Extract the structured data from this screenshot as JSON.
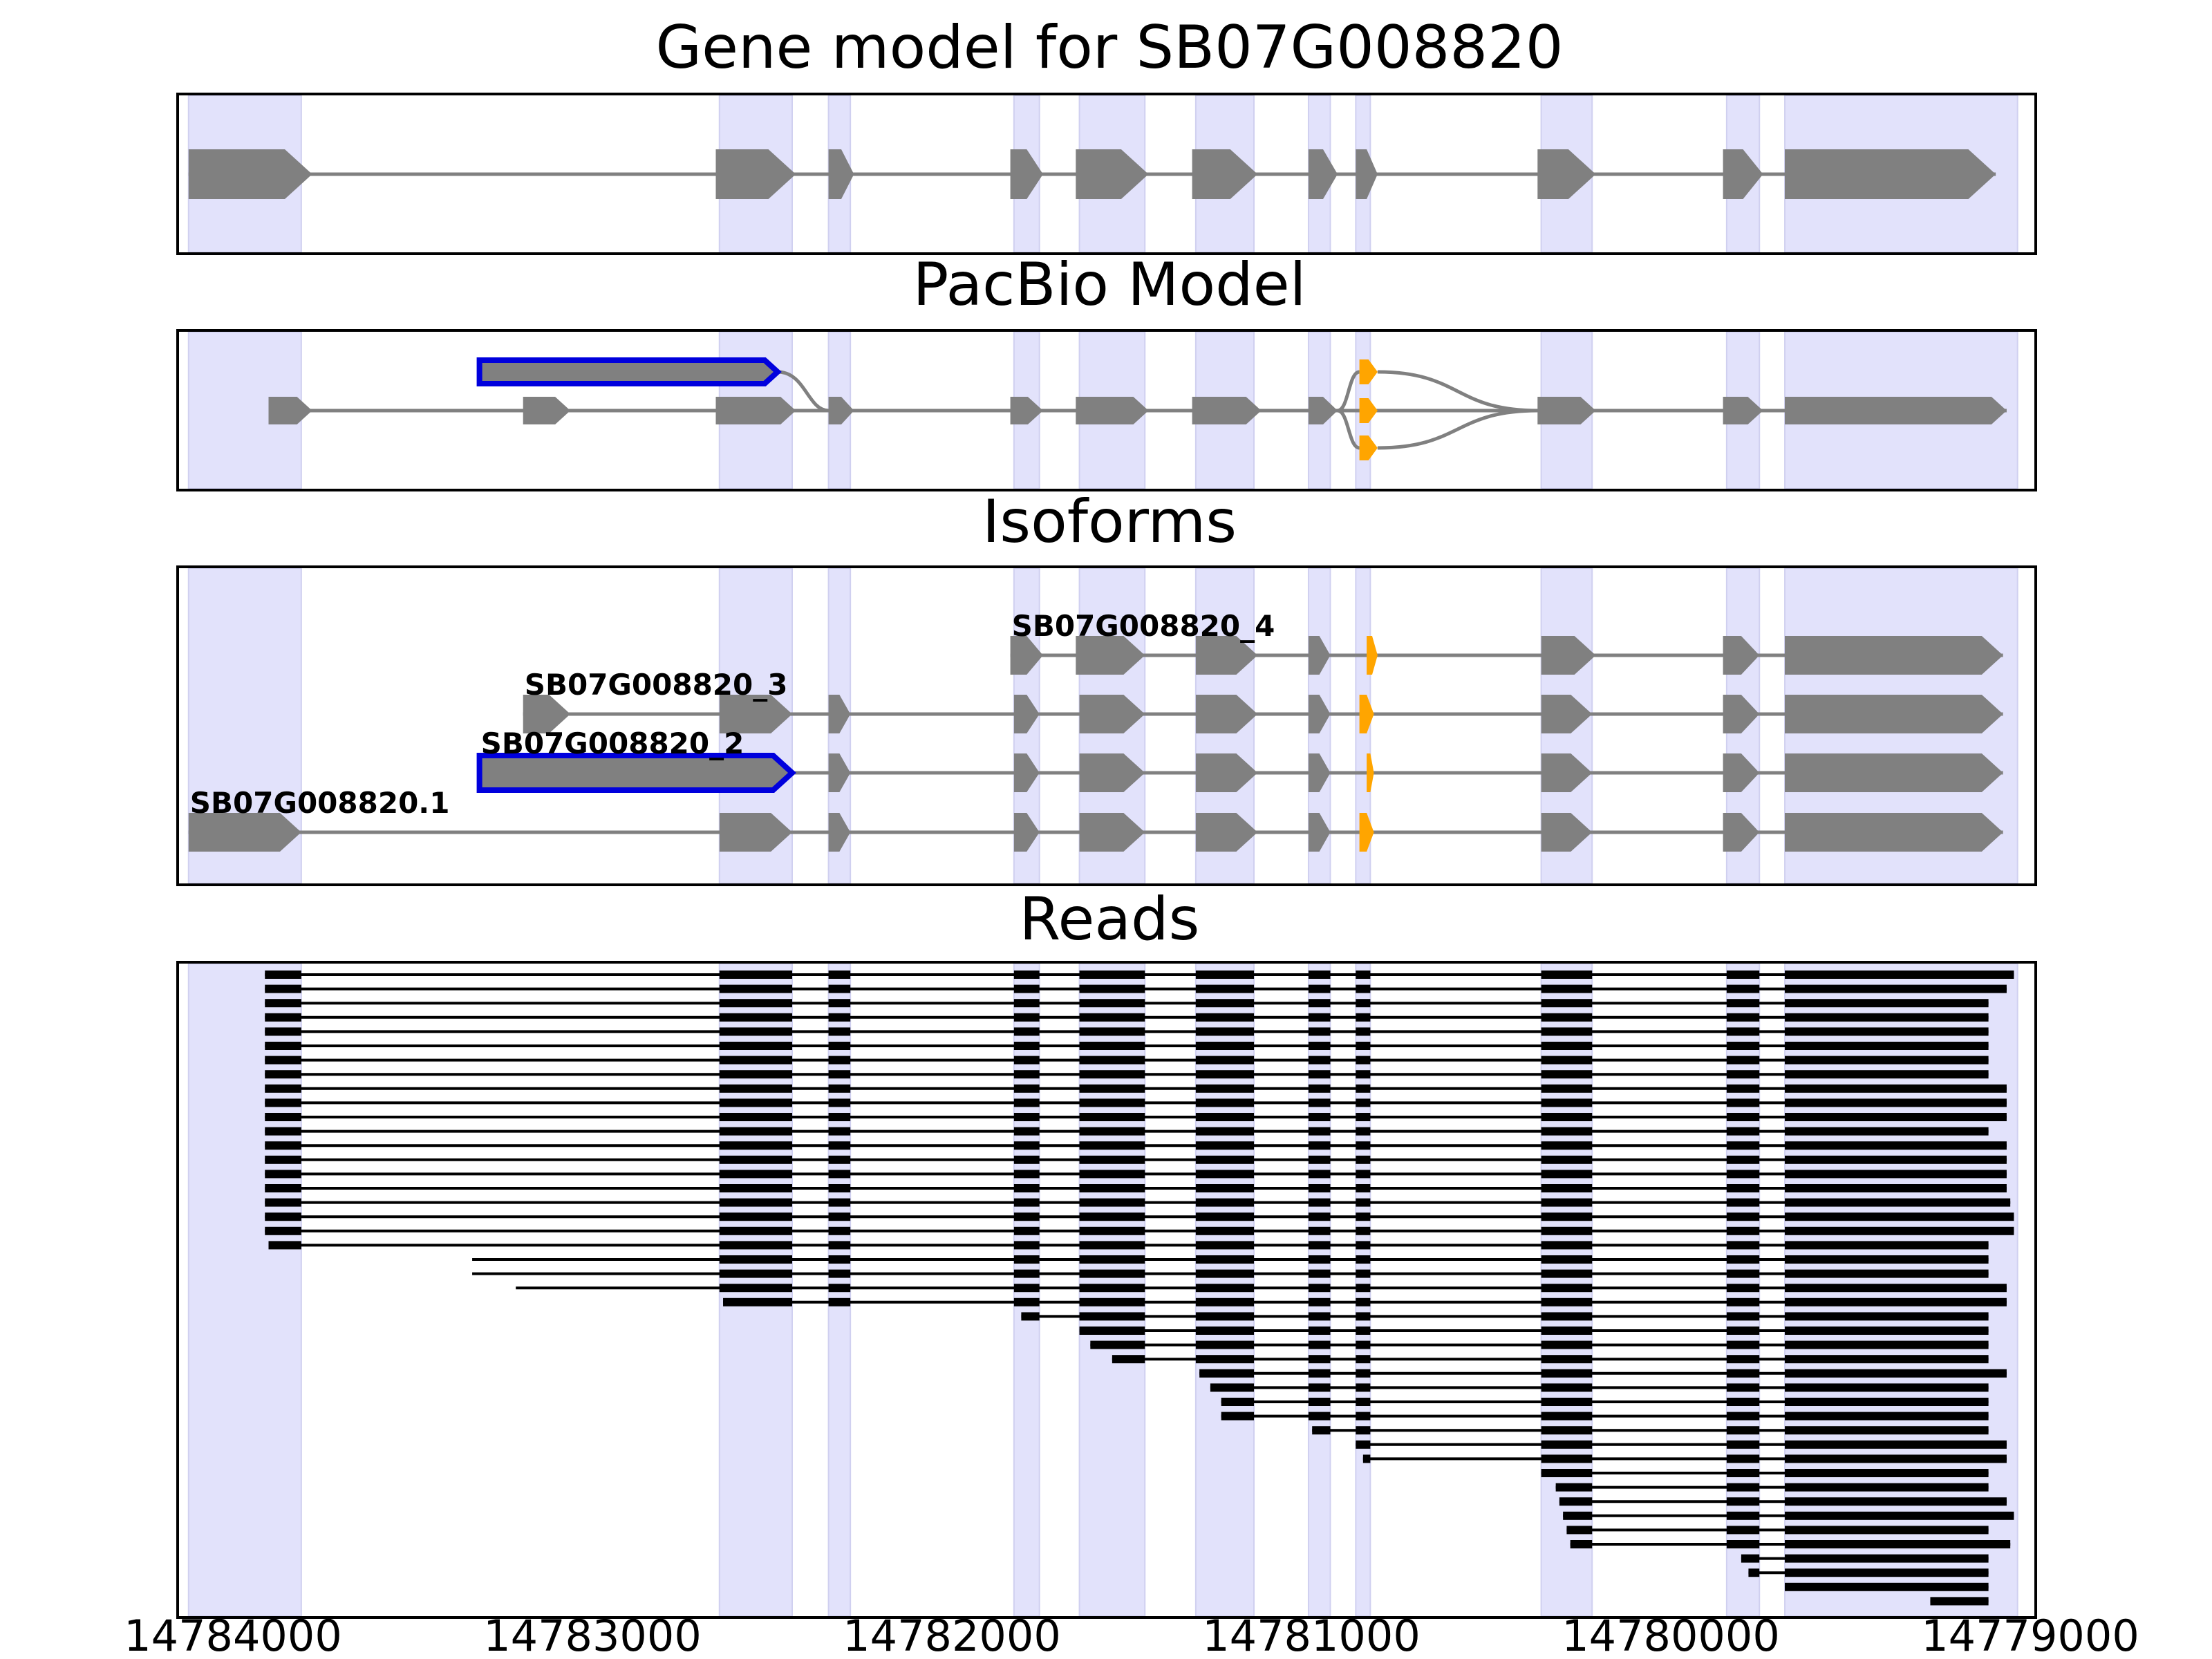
{
  "chart_data": {
    "type": "gene_model_tracks",
    "x_axis": {
      "reversed": true,
      "xlim": [
        14784080,
        14778970
      ],
      "ticks": [
        14784000,
        14783000,
        14782000,
        14781000,
        14780000,
        14779000
      ],
      "tick_labels": [
        "14784000",
        "14783000",
        "14782000",
        "14781000",
        "14780000",
        "14779000"
      ]
    },
    "colors": {
      "exon": "#808080",
      "intron": "#808080",
      "shade": "#e2e2fb",
      "highlight": "#0000dd",
      "alt_exon": "#ffa500",
      "read": "#000000"
    },
    "shaded_regions": [
      [
        14784050,
        14783740
      ],
      [
        14782590,
        14782390
      ],
      [
        14782290,
        14782230
      ],
      [
        14781780,
        14781710
      ],
      [
        14781600,
        14781420
      ],
      [
        14781280,
        14781120
      ],
      [
        14780970,
        14780910
      ],
      [
        14780840,
        14780800
      ],
      [
        14780330,
        14780190
      ],
      [
        14779820,
        14779730
      ],
      [
        14779660,
        14779020
      ]
    ],
    "gene_model": {
      "title": "Gene model for SB07G008820",
      "exons": [
        [
          14784050,
          14783710
        ],
        [
          14782600,
          14782380
        ],
        [
          14782290,
          14782220
        ],
        [
          14781790,
          14781700
        ],
        [
          14781610,
          14781410
        ],
        [
          14781290,
          14781110
        ],
        [
          14780970,
          14780890
        ],
        [
          14780840,
          14780780
        ],
        [
          14780340,
          14780180
        ],
        [
          14779830,
          14779720
        ],
        [
          14779660,
          14779080
        ]
      ]
    },
    "pacbio_model": {
      "title": "PacBio Model",
      "highlighted_exon": [
        14783250,
        14782430
      ],
      "main_exons": [
        [
          14783830,
          14783710
        ],
        [
          14783130,
          14783000
        ],
        [
          14782600,
          14782380
        ],
        [
          14782290,
          14782220
        ],
        [
          14781790,
          14781700
        ],
        [
          14781610,
          14781410
        ],
        [
          14781290,
          14781100
        ],
        [
          14780970,
          14780890
        ],
        [
          14780340,
          14780180
        ],
        [
          14779830,
          14779720
        ],
        [
          14779660,
          14779050
        ]
      ],
      "alt_exons": [
        [
          14780830,
          14780780
        ],
        [
          14780830,
          14780780
        ],
        [
          14780830,
          14780780
        ]
      ]
    },
    "isoforms": {
      "title": "Isoforms",
      "items": [
        {
          "name": "SB07G008820_4",
          "start": 14781790,
          "exons": [
            [
              14781790,
              14781700
            ],
            [
              14781610,
              14781420
            ],
            [
              14781280,
              14781110
            ],
            [
              14780970,
              14780910
            ],
            [
              14780810,
              14780780
            ],
            [
              14780330,
              14780180
            ],
            [
              14779830,
              14779730
            ],
            [
              14779660,
              14779060
            ]
          ],
          "alt_exons": [
            [
              14780810,
              14780780
            ]
          ]
        },
        {
          "name": "SB07G008820_3",
          "start": 14783130,
          "exons": [
            [
              14783130,
              14783000
            ],
            [
              14782590,
              14782390
            ],
            [
              14782290,
              14782230
            ],
            [
              14781780,
              14781710
            ],
            [
              14781600,
              14781420
            ],
            [
              14781280,
              14781110
            ],
            [
              14780970,
              14780910
            ],
            [
              14780830,
              14780790
            ],
            [
              14780330,
              14780190
            ],
            [
              14779830,
              14779730
            ],
            [
              14779660,
              14779060
            ]
          ],
          "alt_exons": [
            [
              14780830,
              14780790
            ]
          ]
        },
        {
          "name": "SB07G008820_2",
          "start": 14783250,
          "highlight": [
            14783250,
            14782390
          ],
          "exons": [
            [
              14782290,
              14782230
            ],
            [
              14781780,
              14781710
            ],
            [
              14781600,
              14781420
            ],
            [
              14781280,
              14781110
            ],
            [
              14780970,
              14780910
            ],
            [
              14780810,
              14780790
            ],
            [
              14780330,
              14780190
            ],
            [
              14779830,
              14779730
            ],
            [
              14779660,
              14779060
            ]
          ],
          "alt_exons": [
            [
              14780810,
              14780790
            ]
          ]
        },
        {
          "name": "SB07G008820.1",
          "start": 14784050,
          "exons": [
            [
              14784050,
              14783740
            ],
            [
              14782590,
              14782390
            ],
            [
              14782290,
              14782230
            ],
            [
              14781780,
              14781710
            ],
            [
              14781600,
              14781420
            ],
            [
              14781280,
              14781110
            ],
            [
              14780970,
              14780910
            ],
            [
              14780830,
              14780790
            ],
            [
              14780330,
              14780190
            ],
            [
              14779830,
              14779730
            ],
            [
              14779660,
              14779060
            ]
          ],
          "alt_exons": [
            [
              14780830,
              14780790
            ]
          ]
        }
      ]
    },
    "reads": {
      "title": "Reads",
      "rows": [
        [
          14783840,
          14779030
        ],
        [
          14783840,
          14779050
        ],
        [
          14783840,
          14779100
        ],
        [
          14783840,
          14779100
        ],
        [
          14783840,
          14779100
        ],
        [
          14783840,
          14779100
        ],
        [
          14783840,
          14779100
        ],
        [
          14783840,
          14779100
        ],
        [
          14783840,
          14779050
        ],
        [
          14783840,
          14779050
        ],
        [
          14783840,
          14779050
        ],
        [
          14783840,
          14779100
        ],
        [
          14783840,
          14779050
        ],
        [
          14783840,
          14779050
        ],
        [
          14783840,
          14779050
        ],
        [
          14783840,
          14779050
        ],
        [
          14783840,
          14779040
        ],
        [
          14783840,
          14779030
        ],
        [
          14783840,
          14779030
        ],
        [
          14783830,
          14779100
        ],
        [
          14783270,
          14779100
        ],
        [
          14783270,
          14779100
        ],
        [
          14783150,
          14779050
        ],
        [
          14782580,
          14779050
        ],
        [
          14781760,
          14779100
        ],
        [
          14781600,
          14779100
        ],
        [
          14781570,
          14779100
        ],
        [
          14781510,
          14779100
        ],
        [
          14781270,
          14779050
        ],
        [
          14781240,
          14779100
        ],
        [
          14781210,
          14779100
        ],
        [
          14781210,
          14779100
        ],
        [
          14780960,
          14779100
        ],
        [
          14780840,
          14779050
        ],
        [
          14780820,
          14779050
        ],
        [
          14780330,
          14779100
        ],
        [
          14780290,
          14779100
        ],
        [
          14780280,
          14779050
        ],
        [
          14780270,
          14779030
        ],
        [
          14780260,
          14779100
        ],
        [
          14780250,
          14779040
        ],
        [
          14779780,
          14779100
        ],
        [
          14779760,
          14779100
        ],
        [
          14779660,
          14779100
        ],
        [
          14779260,
          14779100
        ]
      ]
    }
  }
}
